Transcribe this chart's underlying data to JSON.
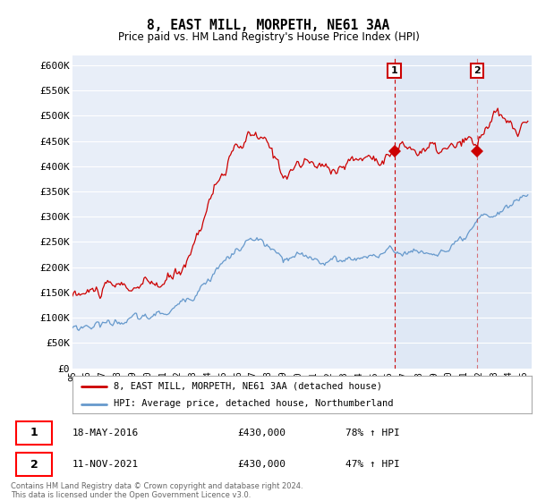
{
  "title": "8, EAST MILL, MORPETH, NE61 3AA",
  "subtitle": "Price paid vs. HM Land Registry's House Price Index (HPI)",
  "ylabel_ticks": [
    "£0",
    "£50K",
    "£100K",
    "£150K",
    "£200K",
    "£250K",
    "£300K",
    "£350K",
    "£400K",
    "£450K",
    "£500K",
    "£550K",
    "£600K"
  ],
  "ytick_values": [
    0,
    50000,
    100000,
    150000,
    200000,
    250000,
    300000,
    350000,
    400000,
    450000,
    500000,
    550000,
    600000
  ],
  "ylim": [
    0,
    620000
  ],
  "xlim_start": 1995.0,
  "xlim_end": 2025.5,
  "red_color": "#cc0000",
  "blue_color": "#6699cc",
  "marker1_year": 2016.38,
  "marker1_value": 430000,
  "marker2_year": 2021.87,
  "marker2_value": 430000,
  "legend_red": "8, EAST MILL, MORPETH, NE61 3AA (detached house)",
  "legend_blue": "HPI: Average price, detached house, Northumberland",
  "footer": "Contains HM Land Registry data © Crown copyright and database right 2024.\nThis data is licensed under the Open Government Licence v3.0.",
  "background_color": "#ffffff",
  "plot_bg_color": "#e8eef8",
  "shaded_start": 2016.38,
  "shaded_end": 2025.5,
  "grid_color": "#ffffff"
}
